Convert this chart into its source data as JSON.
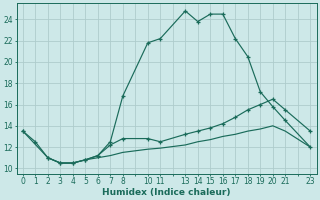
{
  "xlabel": "Humidex (Indice chaleur)",
  "background_color": "#cde8e8",
  "grid_color": "#aecccc",
  "line_color": "#1a6b5a",
  "xlim": [
    -0.5,
    23.5
  ],
  "ylim": [
    9.5,
    25.5
  ],
  "xtick_positions": [
    0,
    1,
    2,
    3,
    4,
    5,
    6,
    7,
    8,
    9,
    10,
    11,
    12,
    13,
    14,
    15,
    16,
    17,
    18,
    19,
    20,
    21,
    22,
    23
  ],
  "xtick_labels": [
    "0",
    "1",
    "2",
    "3",
    "4",
    "5",
    "6",
    "7",
    "8",
    "",
    "10",
    "11",
    "",
    "13",
    "14",
    "15",
    "16",
    "17",
    "18",
    "19",
    "20",
    "21",
    "",
    "23"
  ],
  "yticks": [
    10,
    12,
    14,
    16,
    18,
    20,
    22,
    24
  ],
  "line1_x": [
    0,
    1,
    2,
    3,
    4,
    5,
    6,
    7,
    8,
    10,
    11,
    13,
    14,
    15,
    16,
    17,
    18,
    19,
    20,
    21,
    23
  ],
  "line1_y": [
    13.5,
    12.5,
    11.0,
    10.5,
    10.5,
    10.8,
    11.2,
    12.5,
    16.8,
    21.8,
    22.2,
    24.8,
    23.8,
    24.5,
    24.5,
    22.2,
    20.5,
    17.2,
    15.8,
    14.5,
    12.0
  ],
  "line2_x": [
    0,
    2,
    3,
    4,
    5,
    6,
    7,
    8,
    10,
    11,
    13,
    14,
    15,
    16,
    17,
    18,
    19,
    20,
    21,
    23
  ],
  "line2_y": [
    13.5,
    11.0,
    10.5,
    10.5,
    10.8,
    11.2,
    12.2,
    12.8,
    12.8,
    12.5,
    13.2,
    13.5,
    13.8,
    14.2,
    14.8,
    15.5,
    16.0,
    16.5,
    15.5,
    13.5
  ],
  "line3_x": [
    2,
    3,
    4,
    5,
    6,
    7,
    8,
    10,
    11,
    13,
    14,
    15,
    16,
    17,
    18,
    19,
    20,
    21,
    23
  ],
  "line3_y": [
    11.0,
    10.5,
    10.5,
    10.8,
    11.0,
    11.2,
    11.5,
    11.8,
    11.9,
    12.2,
    12.5,
    12.7,
    13.0,
    13.2,
    13.5,
    13.7,
    14.0,
    13.5,
    12.0
  ]
}
